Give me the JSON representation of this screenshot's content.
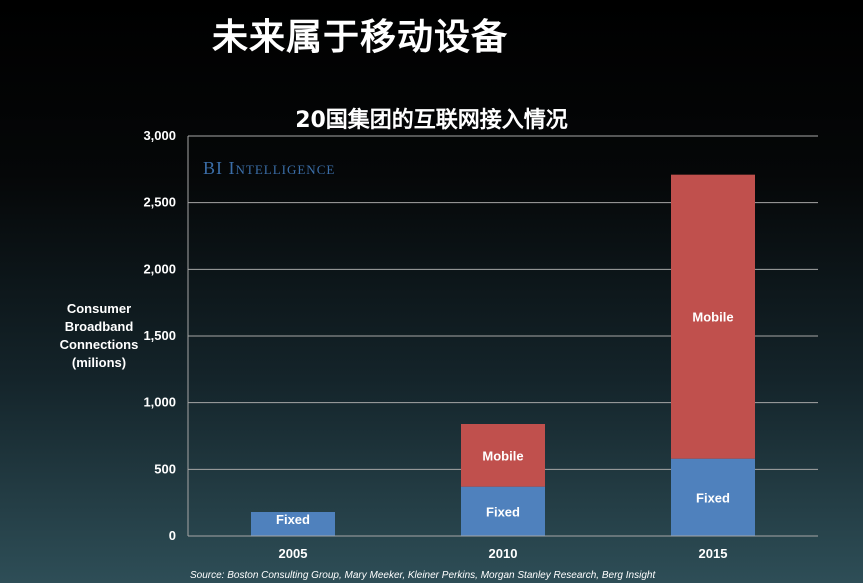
{
  "slide": {
    "title": "未来属于移动设备",
    "brand": "BI Intelligence",
    "source": "Source: Boston Consulting Group, Mary Meeker, Kleiner Perkins, Morgan Stanley Research, Berg Insight"
  },
  "colors": {
    "fixed": "#4f81bd",
    "mobile": "#c0504d",
    "grid": "#a6a6a6",
    "text": "#ffffff",
    "brand": "#3b6ea8"
  },
  "chart_data": {
    "type": "bar",
    "stacked": true,
    "title": "20国集团的互联网接入情况",
    "xlabel": "",
    "ylabel": "Consumer\nBroadband\nConnections\n(milions)",
    "ylim": [
      0,
      3000
    ],
    "yticks": [
      0,
      500,
      1000,
      1500,
      2000,
      2500,
      3000
    ],
    "ytick_labels": [
      "0",
      "500",
      "1,000",
      "1,500",
      "2,000",
      "2,500",
      "3,000"
    ],
    "grid": true,
    "categories": [
      "2005",
      "2010",
      "2015"
    ],
    "series": [
      {
        "name": "Fixed",
        "values": [
          180,
          370,
          580
        ]
      },
      {
        "name": "Mobile",
        "values": [
          0,
          470,
          2130
        ]
      }
    ]
  }
}
